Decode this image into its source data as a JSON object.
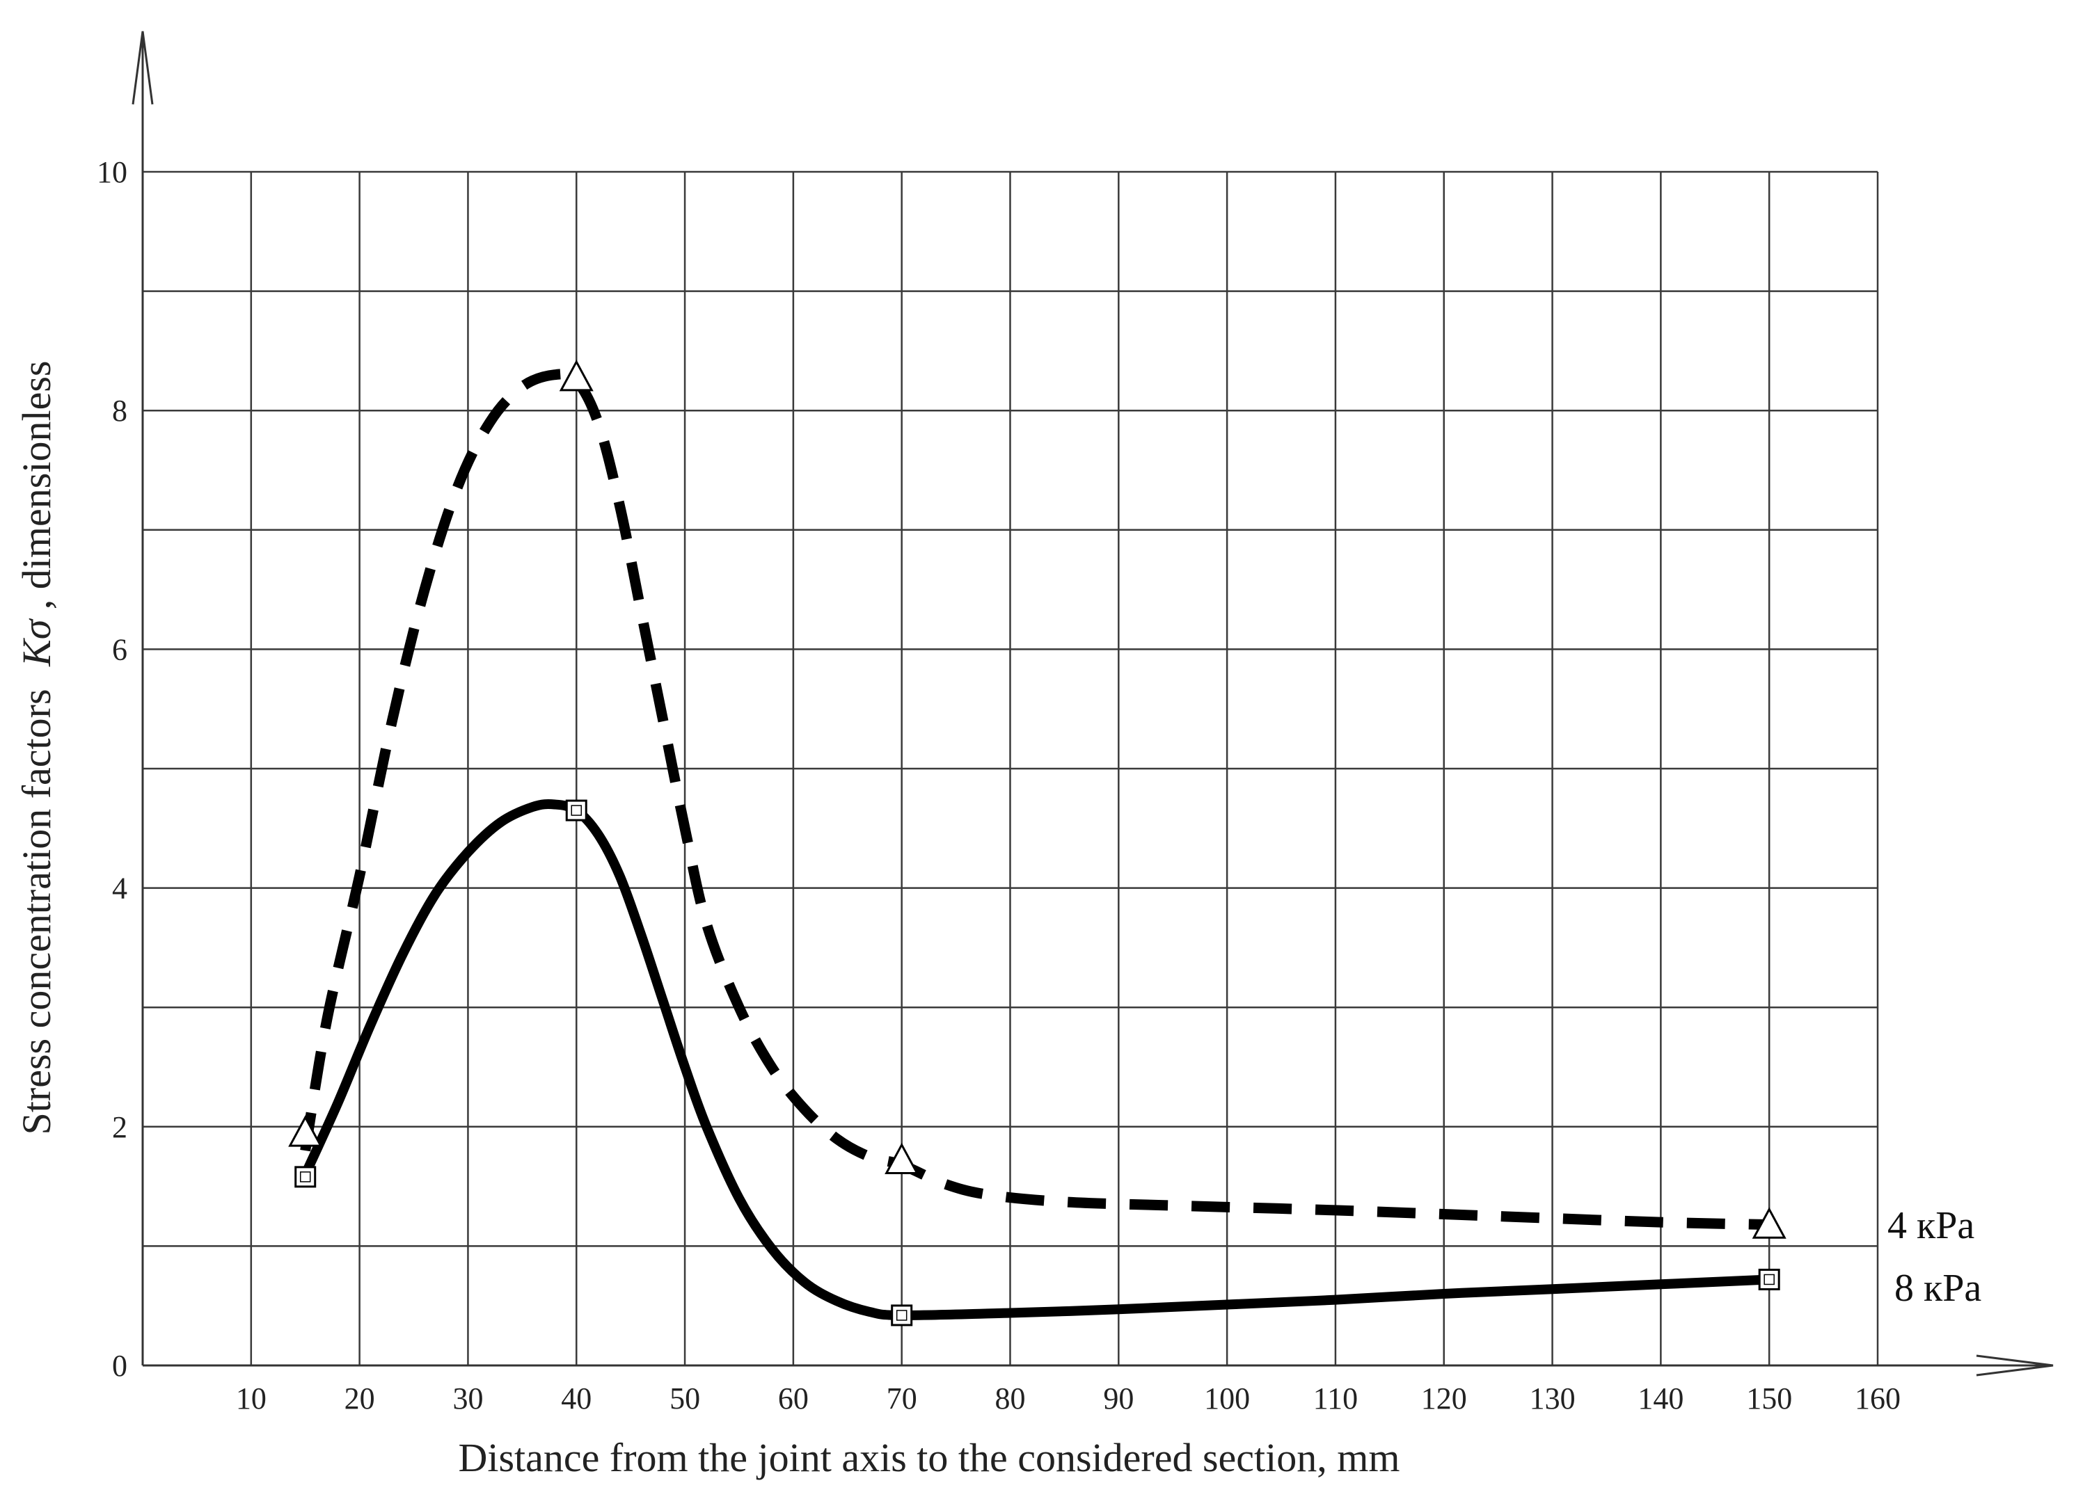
{
  "chart_data": {
    "type": "line",
    "xlabel": "Distance from the joint axis to the considered section, mm",
    "ylabel_main": "Stress concentration factors",
    "ylabel_symbol": "Kσ",
    "ylabel_tail": ", dimensionless",
    "xlim": [
      0,
      160
    ],
    "ylim": [
      0,
      10
    ],
    "xticks": [
      10,
      20,
      30,
      40,
      50,
      60,
      70,
      80,
      90,
      100,
      110,
      120,
      130,
      140,
      150,
      160
    ],
    "yticks": [
      0,
      2,
      4,
      6,
      8,
      10
    ],
    "grid": true,
    "series": [
      {
        "name": "4 кPa",
        "style": "dashed",
        "marker": "triangle",
        "points": [
          [
            15,
            1.95
          ],
          [
            40,
            8.28
          ],
          [
            70,
            1.72
          ],
          [
            150,
            1.18
          ]
        ],
        "curve": [
          [
            15,
            1.8
          ],
          [
            17,
            2.9
          ],
          [
            20,
            4.1
          ],
          [
            23,
            5.4
          ],
          [
            26,
            6.5
          ],
          [
            29,
            7.35
          ],
          [
            32,
            7.9
          ],
          [
            35,
            8.2
          ],
          [
            38,
            8.3
          ],
          [
            40,
            8.25
          ],
          [
            42,
            7.9
          ],
          [
            44,
            7.2
          ],
          [
            46,
            6.3
          ],
          [
            48,
            5.4
          ],
          [
            50,
            4.5
          ],
          [
            52,
            3.7
          ],
          [
            55,
            3.0
          ],
          [
            58,
            2.5
          ],
          [
            61,
            2.15
          ],
          [
            64,
            1.9
          ],
          [
            67,
            1.75
          ],
          [
            70,
            1.68
          ],
          [
            74,
            1.52
          ],
          [
            78,
            1.43
          ],
          [
            85,
            1.37
          ],
          [
            95,
            1.34
          ],
          [
            110,
            1.3
          ],
          [
            125,
            1.25
          ],
          [
            140,
            1.2
          ],
          [
            150,
            1.18
          ]
        ]
      },
      {
        "name": "8 кPa",
        "style": "solid",
        "marker": "square",
        "points": [
          [
            15,
            1.58
          ],
          [
            40,
            4.65
          ],
          [
            70,
            0.42
          ],
          [
            150,
            0.72
          ]
        ],
        "curve": [
          [
            15,
            1.6
          ],
          [
            18,
            2.2
          ],
          [
            21,
            2.85
          ],
          [
            24,
            3.45
          ],
          [
            27,
            3.95
          ],
          [
            30,
            4.3
          ],
          [
            33,
            4.55
          ],
          [
            36,
            4.68
          ],
          [
            38,
            4.7
          ],
          [
            40,
            4.65
          ],
          [
            42,
            4.45
          ],
          [
            44,
            4.1
          ],
          [
            46,
            3.6
          ],
          [
            48,
            3.05
          ],
          [
            50,
            2.5
          ],
          [
            52,
            2.0
          ],
          [
            55,
            1.4
          ],
          [
            58,
            0.98
          ],
          [
            61,
            0.7
          ],
          [
            64,
            0.54
          ],
          [
            67,
            0.45
          ],
          [
            70,
            0.42
          ],
          [
            80,
            0.44
          ],
          [
            90,
            0.47
          ],
          [
            100,
            0.51
          ],
          [
            110,
            0.55
          ],
          [
            120,
            0.6
          ],
          [
            130,
            0.64
          ],
          [
            140,
            0.68
          ],
          [
            150,
            0.72
          ]
        ]
      }
    ]
  }
}
